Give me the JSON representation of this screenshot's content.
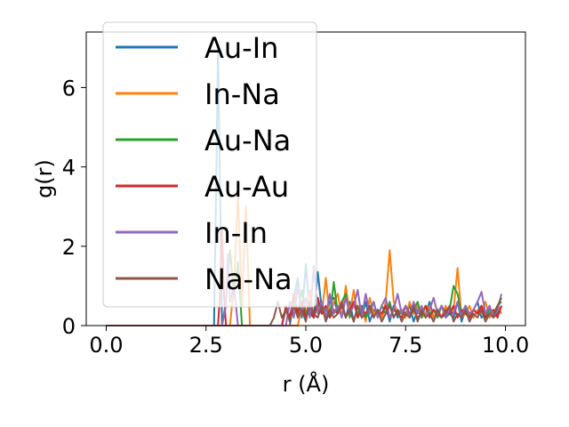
{
  "chart_data": {
    "type": "line",
    "xlabel": "r (Å)",
    "ylabel": "g(r)",
    "xlim": [
      -0.5,
      10.5
    ],
    "ylim": [
      0,
      7.4
    ],
    "xticks": [
      0.0,
      2.5,
      5.0,
      7.5,
      10.0
    ],
    "xtick_labels": [
      "0.0",
      "2.5",
      "5.0",
      "7.5",
      "10.0"
    ],
    "yticks": [
      0,
      2,
      4,
      6
    ],
    "ytick_labels": [
      "0",
      "2",
      "4",
      "6"
    ],
    "grid": false,
    "legend_position": "upper-left",
    "series": [
      {
        "name": "Au-In",
        "color": "#1f77b4",
        "x": [
          0.0,
          2.6,
          2.7,
          2.75,
          2.8,
          2.85,
          2.9,
          3.0,
          4.6,
          4.7,
          4.8,
          4.9,
          5.0,
          5.1,
          5.2,
          5.3,
          5.4,
          5.5,
          5.6,
          5.7,
          5.8,
          5.9,
          6.0,
          6.1,
          6.2,
          6.3,
          6.4,
          6.5,
          6.6,
          6.7,
          6.8,
          6.9,
          7.0,
          7.1,
          7.2,
          7.3,
          7.4,
          7.5,
          7.6,
          7.7,
          7.8,
          7.9,
          8.0,
          8.1,
          8.2,
          8.3,
          8.4,
          8.5,
          8.6,
          8.7,
          8.8,
          8.9,
          9.0,
          9.1,
          9.2,
          9.3,
          9.4,
          9.5,
          9.6,
          9.7,
          9.8,
          9.9
        ],
        "y": [
          0,
          0,
          0,
          3.2,
          7.0,
          3.5,
          0,
          0,
          0,
          0.7,
          1.2,
          0.2,
          1.55,
          0.3,
          0.2,
          1.35,
          0.4,
          0.2,
          0.6,
          0.7,
          0.3,
          0.6,
          0.2,
          0.6,
          0.1,
          0.5,
          0.2,
          0.6,
          0.1,
          0.4,
          0.3,
          0.2,
          0.5,
          0.1,
          0.5,
          0.2,
          0.4,
          0.3,
          0.5,
          0.1,
          0.4,
          0.2,
          0.3,
          0.6,
          0.2,
          0.3,
          0.5,
          0.2,
          0.3,
          0.2,
          0.6,
          0.1,
          0.4,
          0.2,
          0.4,
          0.6,
          0.2,
          0.3,
          0.5,
          0.2,
          0.3,
          0.5
        ]
      },
      {
        "name": "In-Na",
        "color": "#ff7f0e",
        "x": [
          0.0,
          3.1,
          3.2,
          3.3,
          3.4,
          3.5,
          3.6,
          3.7,
          4.8,
          4.9,
          5.0,
          5.1,
          5.2,
          5.3,
          5.4,
          5.5,
          5.6,
          5.7,
          5.8,
          5.9,
          6.0,
          6.1,
          6.2,
          6.3,
          6.4,
          6.5,
          6.6,
          6.7,
          6.8,
          6.9,
          7.0,
          7.1,
          7.2,
          7.3,
          7.4,
          7.5,
          7.6,
          7.7,
          7.8,
          7.9,
          8.0,
          8.1,
          8.2,
          8.3,
          8.4,
          8.5,
          8.6,
          8.7,
          8.8,
          8.9,
          9.0,
          9.1,
          9.2,
          9.3,
          9.4,
          9.5,
          9.6,
          9.7,
          9.8,
          9.9
        ],
        "y": [
          0,
          0,
          1.0,
          3.3,
          0.5,
          3.0,
          0,
          0,
          0,
          0.5,
          0.2,
          0.9,
          0.2,
          0.5,
          0.3,
          1.2,
          0.2,
          0.6,
          0.8,
          0.2,
          1.0,
          0.3,
          0.9,
          0.2,
          0.5,
          0.1,
          0.7,
          0.3,
          0.4,
          0.2,
          0.6,
          1.9,
          0.6,
          0.3,
          0.4,
          0.2,
          0.6,
          0.3,
          0.5,
          0.2,
          0.3,
          0.5,
          0.2,
          0.4,
          0.2,
          0.5,
          0.3,
          0.4,
          1.45,
          0.2,
          0.3,
          0.5,
          0.2,
          0.4,
          0.3,
          0.6,
          0.2,
          0.3,
          0.5,
          0.3
        ]
      },
      {
        "name": "Au-Na",
        "color": "#2ca02c",
        "x": [
          0.0,
          2.9,
          3.0,
          3.1,
          3.2,
          3.3,
          3.4,
          4.4,
          4.5,
          4.6,
          4.7,
          4.8,
          4.9,
          5.0,
          5.1,
          5.2,
          5.3,
          5.4,
          5.5,
          5.6,
          5.7,
          5.8,
          5.9,
          6.0,
          6.1,
          6.2,
          6.3,
          6.4,
          6.5,
          6.6,
          6.7,
          6.8,
          6.9,
          7.0,
          7.1,
          7.2,
          7.3,
          7.4,
          7.5,
          7.6,
          7.7,
          7.8,
          7.9,
          8.0,
          8.1,
          8.2,
          8.3,
          8.4,
          8.5,
          8.6,
          8.7,
          8.8,
          8.9,
          9.0,
          9.1,
          9.2,
          9.3,
          9.4,
          9.5,
          9.6,
          9.7,
          9.8,
          9.9
        ],
        "y": [
          0,
          0,
          0.6,
          1.9,
          0.8,
          1.6,
          0,
          0,
          0.4,
          0.2,
          0.7,
          0.3,
          0.9,
          0.3,
          0.5,
          0.2,
          0.6,
          0.3,
          0.4,
          0.2,
          1.1,
          0.3,
          0.6,
          0.8,
          0.2,
          0.6,
          0.3,
          0.5,
          0.2,
          0.4,
          0.6,
          0.2,
          0.5,
          0.3,
          0.6,
          0.2,
          0.4,
          0.3,
          0.5,
          0.2,
          0.4,
          0.6,
          0.2,
          0.5,
          0.3,
          0.4,
          0.2,
          0.5,
          0.3,
          0.4,
          1.0,
          0.8,
          0.3,
          0.5,
          0.2,
          0.4,
          0.3,
          0.5,
          0.2,
          0.4,
          0.3,
          0.5,
          0.6
        ]
      },
      {
        "name": "Au-Au",
        "color": "#d62728",
        "x": [
          0.0,
          2.8,
          2.85,
          2.9,
          2.95,
          3.0,
          4.4,
          4.5,
          4.6,
          4.7,
          4.8,
          4.9,
          5.0,
          5.1,
          5.2,
          5.3,
          5.4,
          5.5,
          5.6,
          5.7,
          5.8,
          5.9,
          6.0,
          6.1,
          6.2,
          6.3,
          6.4,
          6.5,
          6.6,
          6.7,
          6.8,
          6.9,
          7.0,
          7.1,
          7.2,
          7.3,
          7.4,
          7.5,
          7.6,
          7.7,
          7.8,
          7.9,
          8.0,
          8.1,
          8.2,
          8.3,
          8.4,
          8.5,
          8.6,
          8.7,
          8.8,
          8.9,
          9.0,
          9.1,
          9.2,
          9.3,
          9.4,
          9.5,
          9.6,
          9.7,
          9.8,
          9.9
        ],
        "y": [
          0,
          0,
          0.8,
          2.4,
          0.8,
          0,
          0,
          0.5,
          0.2,
          0.8,
          0.3,
          0.6,
          0.2,
          0.4,
          0.2,
          0.7,
          0.3,
          0.5,
          0.2,
          0.4,
          0.3,
          0.5,
          0.2,
          0.4,
          0.6,
          0.2,
          0.4,
          0.3,
          0.5,
          0.2,
          0.4,
          0.3,
          0.5,
          0.2,
          0.4,
          0.3,
          0.2,
          0.5,
          0.3,
          0.4,
          0.2,
          0.3,
          0.5,
          0.2,
          0.4,
          0.3,
          0.2,
          0.4,
          0.3,
          0.5,
          0.2,
          0.4,
          0.3,
          0.2,
          0.4,
          0.3,
          0.5,
          0.2,
          0.3,
          0.4,
          0.2,
          0.5
        ]
      },
      {
        "name": "In-In",
        "color": "#9467bd",
        "x": [
          0.0,
          2.9,
          3.0,
          3.05,
          3.1,
          3.2,
          3.3,
          4.5,
          4.6,
          4.7,
          4.8,
          4.9,
          5.0,
          5.1,
          5.2,
          5.3,
          5.4,
          5.5,
          5.6,
          5.7,
          5.8,
          5.9,
          6.0,
          6.1,
          6.2,
          6.3,
          6.4,
          6.5,
          6.6,
          6.7,
          6.8,
          6.9,
          7.0,
          7.1,
          7.2,
          7.3,
          7.4,
          7.5,
          7.6,
          7.7,
          7.8,
          7.9,
          8.0,
          8.1,
          8.2,
          8.3,
          8.4,
          8.5,
          8.6,
          8.7,
          8.8,
          8.9,
          9.0,
          9.1,
          9.2,
          9.3,
          9.4,
          9.5,
          9.6,
          9.7,
          9.8,
          9.9
        ],
        "y": [
          0,
          0,
          0.5,
          1.8,
          0.6,
          1.0,
          0,
          0,
          0.6,
          0.2,
          1.0,
          0.3,
          0.7,
          0.2,
          1.5,
          0.3,
          0.6,
          0.2,
          0.8,
          0.3,
          0.5,
          0.2,
          0.7,
          0.3,
          0.5,
          0.9,
          0.2,
          0.8,
          0.3,
          0.6,
          0.2,
          0.5,
          0.7,
          0.2,
          0.4,
          0.8,
          0.3,
          0.5,
          0.2,
          0.6,
          0.3,
          0.5,
          0.2,
          0.4,
          0.7,
          0.3,
          0.5,
          0.2,
          0.4,
          0.3,
          0.6,
          0.2,
          0.5,
          0.3,
          0.4,
          0.6,
          0.85,
          0.3,
          0.5,
          0.2,
          0.4,
          0.8
        ]
      },
      {
        "name": "Na-Na",
        "color": "#8c564b",
        "x": [
          0.0,
          4.1,
          4.2,
          4.3,
          4.4,
          4.5,
          4.6,
          4.7,
          4.8,
          4.9,
          5.0,
          5.1,
          5.2,
          5.3,
          5.4,
          5.5,
          5.6,
          5.7,
          5.8,
          5.9,
          6.0,
          6.1,
          6.2,
          6.3,
          6.4,
          6.5,
          6.6,
          6.7,
          6.8,
          6.9,
          7.0,
          7.1,
          7.2,
          7.3,
          7.4,
          7.5,
          7.6,
          7.7,
          7.8,
          7.9,
          8.0,
          8.1,
          8.2,
          8.3,
          8.4,
          8.5,
          8.6,
          8.7,
          8.8,
          8.9,
          9.0,
          9.1,
          9.2,
          9.3,
          9.4,
          9.5,
          9.6,
          9.7,
          9.8,
          9.9
        ],
        "y": [
          0,
          0,
          0.2,
          0.6,
          0.2,
          0.4,
          0.1,
          0.5,
          0.2,
          0.4,
          0.1,
          0.6,
          0.3,
          0.2,
          0.5,
          0.1,
          0.4,
          0.2,
          0.3,
          0.6,
          0.2,
          0.4,
          0.1,
          0.5,
          0.2,
          0.3,
          0.5,
          0.2,
          0.4,
          0.1,
          0.3,
          0.5,
          0.2,
          0.4,
          0.1,
          0.3,
          0.2,
          0.5,
          0.1,
          0.4,
          0.2,
          0.3,
          0.1,
          0.4,
          0.2,
          0.3,
          0.5,
          0.1,
          0.3,
          0.2,
          0.4,
          0.1,
          0.3,
          0.2,
          0.4,
          0.1,
          0.3,
          0.2,
          0.5,
          0.7
        ]
      }
    ]
  }
}
